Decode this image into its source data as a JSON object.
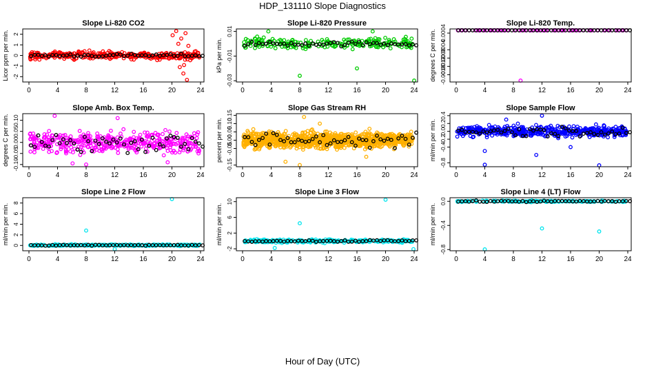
{
  "figure": {
    "title": "HDP_131110  Slope Diagnostics",
    "xlabel": "Hour of Day (UTC)"
  },
  "chart_data": [
    {
      "type": "scatter",
      "title": "Slope Li-820 CO2",
      "ylabel": "Licor ppm per min.",
      "xlim": [
        0,
        24
      ],
      "xticks": [
        "0",
        "4",
        "8",
        "12",
        "16",
        "20",
        "24"
      ],
      "ylim": [
        -2.5,
        2.5
      ],
      "yticks": [
        "-2",
        "-1",
        "0",
        "1",
        "2"
      ],
      "color": "#ff0000",
      "mean": 0,
      "spread": 0.35,
      "n": 340,
      "outliers": [
        [
          20.1,
          1.9
        ],
        [
          20.6,
          2.3
        ],
        [
          21.3,
          1.6
        ],
        [
          21.6,
          -1.7
        ],
        [
          21.9,
          2.1
        ],
        [
          21.7,
          -0.9
        ],
        [
          22.1,
          -2.3
        ],
        [
          20.9,
          1.1
        ],
        [
          21.1,
          -1.1
        ],
        [
          22.3,
          0.9
        ]
      ],
      "black_spread": 0.14
    },
    {
      "type": "scatter",
      "title": "Slope Li-820 Pressure",
      "ylabel": "kPa per min.",
      "xlim": [
        0,
        24
      ],
      "xticks": [
        "0",
        "4",
        "8",
        "12",
        "16",
        "20",
        "24"
      ],
      "ylim": [
        -0.031,
        0.012
      ],
      "yticks": [
        "-0.03",
        "-0.01",
        "0.01"
      ],
      "color": "#00cc00",
      "mean": 0,
      "spread": 0.0045,
      "n": 220,
      "outliers": [
        [
          8.0,
          -0.026
        ],
        [
          16.0,
          -0.02
        ],
        [
          24.0,
          -0.03
        ],
        [
          3.6,
          0.01
        ],
        [
          18.2,
          0.01
        ]
      ],
      "black_spread": 0.0018
    },
    {
      "type": "scatter",
      "title": "Slope Li-820 Temp.",
      "ylabel": "degrees C per min.",
      "xlim": [
        0,
        24
      ],
      "xticks": [
        "0",
        "4",
        "8",
        "12",
        "16",
        "20",
        "24"
      ],
      "ylim": [
        -0.00195,
        0.0006
      ],
      "yticks": [
        "-0.0016",
        "-0.0012",
        "-0.0008",
        "-0.0004",
        "0.0004"
      ],
      "color": "#ff00ff",
      "mean": 0.00056,
      "spread": 0,
      "n": 75,
      "outliers": [
        [
          9.0,
          -0.00192
        ],
        [
          0.3,
          0.00056
        ]
      ],
      "black_spread": 0
    },
    {
      "type": "scatter",
      "title": "Slope Amb. Box Temp.",
      "ylabel": "degrees C per min.",
      "xlim": [
        0,
        24
      ],
      "xticks": [
        "0",
        "4",
        "8",
        "12",
        "16",
        "20",
        "24"
      ],
      "ylim": [
        -0.11,
        0.13
      ],
      "yticks": [
        "-0.10",
        "-0.05",
        "0.00",
        "0.05",
        "0.10"
      ],
      "color": "#ff00ff",
      "mean": 0,
      "spread": 0.045,
      "n": 420,
      "outliers": [
        [
          3.6,
          0.12
        ],
        [
          8.0,
          -0.1
        ],
        [
          12.4,
          0.11
        ],
        [
          6.1,
          -0.095
        ],
        [
          19.4,
          -0.09
        ]
      ],
      "black_spread": 0.04
    },
    {
      "type": "scatter",
      "title": "Slope Gas Stream RH",
      "ylabel": "percent per min.",
      "xlim": [
        0,
        24
      ],
      "xticks": [
        "0",
        "4",
        "8",
        "12",
        "16",
        "20",
        "24"
      ],
      "ylim": [
        -0.16,
        0.16
      ],
      "yticks": [
        "-0.15",
        "-0.05",
        "0.00",
        "0.05",
        "0.10",
        "0.15"
      ],
      "color": "#ffb000",
      "mean": 0,
      "spread": 0.045,
      "n": 1100,
      "outliers": [
        [
          8.0,
          -0.15
        ],
        [
          8.6,
          0.14
        ],
        [
          6.0,
          -0.13
        ],
        [
          10.8,
          0.1
        ],
        [
          17.3,
          -0.1
        ]
      ],
      "black_spread": 0.04
    },
    {
      "type": "scatter",
      "title": "Slope Sample Flow",
      "ylabel": "ml/min per min.",
      "xlim": [
        0,
        24
      ],
      "xticks": [
        "0",
        "4",
        "8",
        "12",
        "16",
        "20",
        "24"
      ],
      "ylim": [
        -0.9,
        0.45
      ],
      "yticks": [
        "-0.8",
        "-0.4",
        "-0.2",
        "0.0",
        "0.2",
        "0.4"
      ],
      "color": "#0000ff",
      "mean": 0,
      "spread": 0.13,
      "n": 480,
      "outliers": [
        [
          4.0,
          -0.85
        ],
        [
          20.0,
          -0.88
        ],
        [
          4.0,
          -0.5
        ],
        [
          11.2,
          -0.6
        ],
        [
          12.0,
          0.4
        ],
        [
          7.0,
          0.3
        ],
        [
          16.0,
          -0.4
        ]
      ],
      "black_spread": 0.12
    },
    {
      "type": "scatter",
      "title": "Slope Line 2 Flow",
      "ylabel": "ml/min per min.",
      "xlim": [
        0,
        24
      ],
      "xticks": [
        "0",
        "4",
        "8",
        "12",
        "16",
        "20",
        "24"
      ],
      "ylim": [
        -1,
        9
      ],
      "yticks": [
        "0",
        "2",
        "4",
        "6",
        "8"
      ],
      "color": "#00e5ee",
      "mean": 0.05,
      "spread": 0.15,
      "n": 260,
      "outliers": [
        [
          20.0,
          8.8
        ],
        [
          8.0,
          2.8
        ],
        [
          12.0,
          -0.7
        ]
      ],
      "black_spread": 0.08
    },
    {
      "type": "scatter",
      "title": "Slope Line 3 Flow",
      "ylabel": "ml/min per min.",
      "xlim": [
        0,
        24
      ],
      "xticks": [
        "0",
        "4",
        "8",
        "12",
        "16",
        "20",
        "24"
      ],
      "ylim": [
        -2.5,
        11
      ],
      "yticks": [
        "-2",
        "2",
        "6",
        "10"
      ],
      "color": "#00e5ee",
      "mean": 0,
      "spread": 0.4,
      "n": 280,
      "outliers": [
        [
          20.0,
          10.5
        ],
        [
          8.0,
          4.5
        ],
        [
          4.5,
          -1.8
        ],
        [
          23.9,
          -2.1
        ]
      ],
      "black_spread": 0.25
    },
    {
      "type": "scatter",
      "title": "Slope Line 4 (LT) Flow",
      "ylabel": "ml/min per min.",
      "xlim": [
        0,
        24
      ],
      "xticks": [
        "0",
        "4",
        "8",
        "12",
        "16",
        "20",
        "24"
      ],
      "ylim": [
        -0.82,
        0.06
      ],
      "yticks": [
        "-0.8",
        "-0.4",
        "0.0"
      ],
      "color": "#00e5ee",
      "mean": 0,
      "spread": 0.012,
      "n": 180,
      "outliers": [
        [
          4.0,
          -0.8
        ],
        [
          12.0,
          -0.45
        ],
        [
          20.0,
          -0.5
        ]
      ],
      "black_spread": 0.01
    }
  ]
}
